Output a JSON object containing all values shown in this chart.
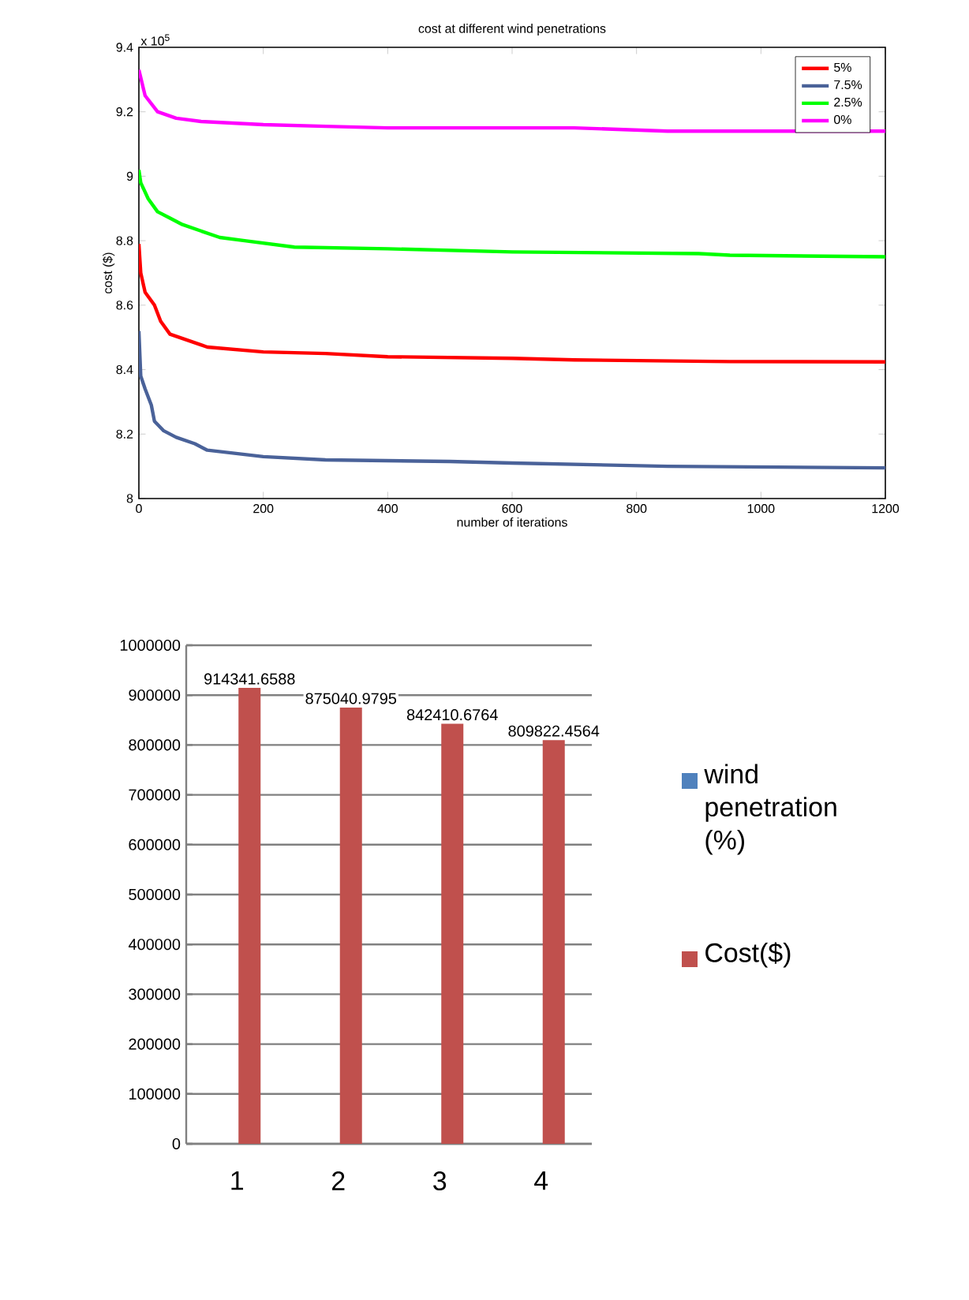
{
  "chart_data": [
    {
      "type": "line",
      "title": "cost at different wind penetrations",
      "xlabel": "number of iterations",
      "ylabel": "cost ($)",
      "annotations": [
        "x 10$^{5}$"
      ],
      "xlim": [
        0,
        1200
      ],
      "ylim": [
        8,
        9.4
      ],
      "xticks": [
        0,
        200,
        400,
        600,
        800,
        1000,
        1200
      ],
      "yticks": [
        8,
        8.2,
        8.4,
        8.6,
        8.8,
        9,
        9.2,
        9.4
      ],
      "legend": "top right",
      "grid": false,
      "marker": "none",
      "line_style": "solid",
      "series": [
        {
          "name": "5%",
          "color": "#ff0000",
          "x": [
            0,
            3,
            10,
            25,
            35,
            50,
            80,
            110,
            200,
            300,
            400,
            600,
            700,
            950,
            1200
          ],
          "values": [
            8.79,
            8.7,
            8.64,
            8.6,
            8.55,
            8.51,
            8.49,
            8.47,
            8.455,
            8.45,
            8.44,
            8.435,
            8.43,
            8.425,
            8.424
          ]
        },
        {
          "name": "7.5%",
          "color": "#4a6299",
          "x": [
            0,
            3,
            10,
            20,
            25,
            40,
            60,
            90,
            110,
            200,
            300,
            500,
            600,
            850,
            1200
          ],
          "values": [
            8.52,
            8.38,
            8.34,
            8.29,
            8.24,
            8.21,
            8.19,
            8.17,
            8.15,
            8.13,
            8.12,
            8.115,
            8.11,
            8.1,
            8.095
          ]
        },
        {
          "name": "2.5%",
          "color": "#00ff00",
          "x": [
            0,
            3,
            15,
            30,
            50,
            70,
            100,
            130,
            170,
            250,
            400,
            600,
            900,
            950,
            1200
          ],
          "values": [
            9.02,
            8.98,
            8.93,
            8.89,
            8.87,
            8.85,
            8.83,
            8.81,
            8.8,
            8.78,
            8.775,
            8.765,
            8.76,
            8.755,
            8.75
          ]
        },
        {
          "name": "0%",
          "color": "#ff00ff",
          "x": [
            0,
            10,
            30,
            60,
            100,
            200,
            300,
            400,
            700,
            850,
            1200
          ],
          "values": [
            9.33,
            9.25,
            9.2,
            9.18,
            9.17,
            9.16,
            9.155,
            9.15,
            9.15,
            9.14,
            9.14
          ]
        }
      ]
    },
    {
      "type": "bar",
      "categories": [
        "1",
        "2",
        "3",
        "4"
      ],
      "ylim": [
        0,
        1000000
      ],
      "yticks": [
        0,
        100000,
        200000,
        300000,
        400000,
        500000,
        600000,
        700000,
        800000,
        900000,
        1000000
      ],
      "grid": "y",
      "legend": "right",
      "series": [
        {
          "name": "wind penetration (%)",
          "color": "#4f81bd",
          "values": [
            0,
            0,
            0,
            0
          ]
        },
        {
          "name": "Cost($)",
          "color": "#c0504d",
          "values": [
            914341.6588,
            875040.9795,
            842410.6764,
            809822.4564
          ],
          "value_labels": [
            "914341.6588",
            "875040.9795",
            "842410.6764",
            "809822.4564"
          ]
        }
      ]
    }
  ]
}
